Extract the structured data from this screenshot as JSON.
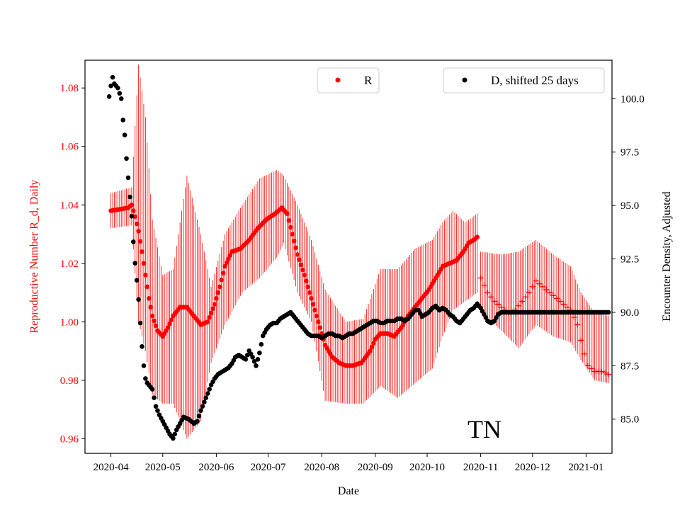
{
  "chart_data": {
    "type": "scatter",
    "region_label": "TN",
    "xlabel": "Date",
    "ylabel_left": "Reproductive Number R_d, Daily",
    "ylabel_right": "Encounter Density, Adjusted",
    "x_ticks": [
      "2020-04",
      "2020-05",
      "2020-06",
      "2020-07",
      "2020-08",
      "2020-09",
      "2020-10",
      "2020-11",
      "2020-12",
      "2021-01"
    ],
    "x_tick_days": [
      0,
      30,
      61,
      91,
      122,
      153,
      183,
      214,
      244,
      275
    ],
    "xlim_days": [
      -15,
      290
    ],
    "y_left": {
      "lim": [
        0.955,
        1.0895
      ],
      "ticks": [
        "0.96",
        "0.98",
        "1.00",
        "1.02",
        "1.04",
        "1.06",
        "1.08"
      ],
      "color": "#ff0000"
    },
    "y_right": {
      "lim": [
        83.4,
        101.8
      ],
      "ticks": [
        "85.0",
        "87.5",
        "90.0",
        "92.5",
        "95.0",
        "97.5",
        "100.0"
      ],
      "color": "#000000"
    },
    "legend": [
      {
        "label": "R",
        "color": "#ff0000",
        "position": "top-center"
      },
      {
        "label": "D, shifted 25 days",
        "color": "#000000",
        "position": "top-right"
      }
    ],
    "series": [
      {
        "name": "R",
        "axis": "left",
        "color": "#ff0000",
        "marker": "dot",
        "error_bars": true,
        "points": [
          [
            0,
            1.038
          ],
          [
            5,
            1.0385
          ],
          [
            10,
            1.039
          ],
          [
            12,
            1.04
          ],
          [
            14,
            1.036
          ],
          [
            16,
            1.031
          ],
          [
            18,
            1.024
          ],
          [
            20,
            1.016
          ],
          [
            22,
            1.008
          ],
          [
            24,
            1.002
          ],
          [
            27,
            0.997
          ],
          [
            30,
            0.995
          ],
          [
            33,
            0.998
          ],
          [
            36,
            1.002
          ],
          [
            40,
            1.005
          ],
          [
            44,
            1.005
          ],
          [
            48,
            1.002
          ],
          [
            52,
            0.999
          ],
          [
            56,
            1.0
          ],
          [
            60,
            1.006
          ],
          [
            63,
            1.012
          ],
          [
            66,
            1.019
          ],
          [
            70,
            1.024
          ],
          [
            75,
            1.025
          ],
          [
            80,
            1.028
          ],
          [
            85,
            1.032
          ],
          [
            90,
            1.035
          ],
          [
            95,
            1.037
          ],
          [
            99,
            1.039
          ],
          [
            102,
            1.037
          ],
          [
            105,
            1.03
          ],
          [
            108,
            1.023
          ],
          [
            112,
            1.016
          ],
          [
            116,
            1.008
          ],
          [
            120,
            1.0
          ],
          [
            124,
            0.992
          ],
          [
            128,
            0.988
          ],
          [
            132,
            0.986
          ],
          [
            136,
            0.985
          ],
          [
            140,
            0.985
          ],
          [
            145,
            0.986
          ],
          [
            150,
            0.99
          ],
          [
            153,
            0.994
          ],
          [
            156,
            0.996
          ],
          [
            160,
            0.996
          ],
          [
            164,
            0.995
          ],
          [
            168,
            0.998
          ],
          [
            172,
            1.002
          ],
          [
            176,
            1.005
          ],
          [
            180,
            1.008
          ],
          [
            184,
            1.011
          ],
          [
            188,
            1.015
          ],
          [
            192,
            1.019
          ],
          [
            196,
            1.02
          ],
          [
            200,
            1.021
          ],
          [
            204,
            1.024
          ],
          [
            207,
            1.027
          ],
          [
            210,
            1.028
          ],
          [
            212,
            1.029
          ]
        ],
        "err_upper": [
          [
            0,
            1.044
          ],
          [
            12,
            1.046
          ],
          [
            16,
            1.088
          ],
          [
            20,
            1.07
          ],
          [
            24,
            1.035
          ],
          [
            30,
            1.016
          ],
          [
            36,
            1.018
          ],
          [
            44,
            1.05
          ],
          [
            52,
            1.03
          ],
          [
            58,
            1.012
          ],
          [
            66,
            1.03
          ],
          [
            76,
            1.04
          ],
          [
            86,
            1.049
          ],
          [
            96,
            1.052
          ],
          [
            100,
            1.05
          ],
          [
            108,
            1.04
          ],
          [
            116,
            1.028
          ],
          [
            124,
            1.011
          ],
          [
            136,
            1.0
          ],
          [
            146,
            1.001
          ],
          [
            156,
            1.018
          ],
          [
            166,
            1.018
          ],
          [
            176,
            1.025
          ],
          [
            186,
            1.028
          ],
          [
            192,
            1.034
          ],
          [
            198,
            1.038
          ],
          [
            205,
            1.034
          ],
          [
            212,
            1.037
          ]
        ],
        "err_lower": [
          [
            0,
            1.032
          ],
          [
            12,
            1.033
          ],
          [
            16,
            1.0
          ],
          [
            20,
            0.99
          ],
          [
            24,
            0.975
          ],
          [
            30,
            0.972
          ],
          [
            36,
            0.972
          ],
          [
            44,
            0.96
          ],
          [
            52,
            0.966
          ],
          [
            58,
            0.986
          ],
          [
            66,
            0.999
          ],
          [
            76,
            1.01
          ],
          [
            86,
            1.015
          ],
          [
            96,
            1.022
          ],
          [
            100,
            1.027
          ],
          [
            108,
            1.01
          ],
          [
            116,
            1.0
          ],
          [
            124,
            0.973
          ],
          [
            136,
            0.972
          ],
          [
            146,
            0.972
          ],
          [
            156,
            0.978
          ],
          [
            166,
            0.974
          ],
          [
            176,
            0.979
          ],
          [
            186,
            0.984
          ],
          [
            192,
            0.995
          ],
          [
            198,
            1.004
          ],
          [
            205,
            1.007
          ],
          [
            212,
            1.01
          ]
        ]
      },
      {
        "name": "R (extended)",
        "axis": "left",
        "color": "#ff0000",
        "marker": "plus",
        "error_bars": true,
        "points": [
          [
            214,
            1.015
          ],
          [
            218,
            1.01
          ],
          [
            222,
            1.007
          ],
          [
            226,
            1.005
          ],
          [
            230,
            1.003
          ],
          [
            234,
            1.004
          ],
          [
            238,
            1.007
          ],
          [
            242,
            1.01
          ],
          [
            246,
            1.014
          ],
          [
            250,
            1.012
          ],
          [
            254,
            1.01
          ],
          [
            258,
            1.008
          ],
          [
            262,
            1.006
          ],
          [
            266,
            1.004
          ],
          [
            270,
            0.999
          ],
          [
            273,
            0.991
          ],
          [
            276,
            0.985
          ],
          [
            280,
            0.983
          ],
          [
            284,
            0.983
          ],
          [
            288,
            0.982
          ]
        ],
        "err_upper": [
          [
            214,
            1.024
          ],
          [
            226,
            1.023
          ],
          [
            236,
            1.024
          ],
          [
            246,
            1.028
          ],
          [
            256,
            1.023
          ],
          [
            266,
            1.019
          ],
          [
            272,
            1.01
          ],
          [
            280,
            1.003
          ],
          [
            288,
            1.002
          ]
        ],
        "err_lower": [
          [
            214,
            1.003
          ],
          [
            226,
            0.997
          ],
          [
            236,
            0.991
          ],
          [
            246,
            0.999
          ],
          [
            256,
            0.995
          ],
          [
            266,
            0.993
          ],
          [
            272,
            0.987
          ],
          [
            280,
            0.98
          ],
          [
            288,
            0.979
          ]
        ]
      },
      {
        "name": "D, shifted 25 days",
        "axis": "right",
        "color": "#000000",
        "marker": "dot",
        "points": [
          [
            -1,
            100.1
          ],
          [
            0,
            100.6
          ],
          [
            1,
            101.0
          ],
          [
            2,
            100.7
          ],
          [
            4,
            100.5
          ],
          [
            6,
            100.0
          ],
          [
            7,
            99.0
          ],
          [
            8,
            98.3
          ],
          [
            9,
            97.2
          ],
          [
            10,
            96.3
          ],
          [
            11,
            95.4
          ],
          [
            12,
            94.5
          ],
          [
            13,
            93.3
          ],
          [
            14,
            92.3
          ],
          [
            15,
            91.5
          ],
          [
            16,
            90.6
          ],
          [
            17,
            89.5
          ],
          [
            18,
            88.4
          ],
          [
            19,
            87.5
          ],
          [
            20,
            86.9
          ],
          [
            21,
            86.7
          ],
          [
            22,
            86.6
          ],
          [
            24,
            86.4
          ],
          [
            25,
            86.0
          ],
          [
            26,
            85.6
          ],
          [
            28,
            85.2
          ],
          [
            30,
            84.9
          ],
          [
            32,
            84.6
          ],
          [
            34,
            84.3
          ],
          [
            36,
            84.1
          ],
          [
            38,
            84.5
          ],
          [
            40,
            84.8
          ],
          [
            42,
            85.1
          ],
          [
            45,
            85.0
          ],
          [
            48,
            84.8
          ],
          [
            50,
            84.9
          ],
          [
            52,
            85.4
          ],
          [
            54,
            85.8
          ],
          [
            56,
            86.2
          ],
          [
            58,
            86.6
          ],
          [
            60,
            86.9
          ],
          [
            62,
            87.1
          ],
          [
            64,
            87.2
          ],
          [
            66,
            87.3
          ],
          [
            68,
            87.4
          ],
          [
            70,
            87.6
          ],
          [
            72,
            87.9
          ],
          [
            74,
            88.0
          ],
          [
            76,
            87.9
          ],
          [
            78,
            87.8
          ],
          [
            80,
            88.2
          ],
          [
            82,
            87.9
          ],
          [
            84,
            87.5
          ],
          [
            86,
            88.1
          ],
          [
            88,
            88.9
          ],
          [
            90,
            89.2
          ],
          [
            92,
            89.4
          ],
          [
            94,
            89.5
          ],
          [
            96,
            89.5
          ],
          [
            98,
            89.7
          ],
          [
            100,
            89.8
          ],
          [
            102,
            89.9
          ],
          [
            104,
            90.0
          ],
          [
            106,
            89.8
          ],
          [
            108,
            89.6
          ],
          [
            110,
            89.4
          ],
          [
            112,
            89.2
          ],
          [
            114,
            89.0
          ],
          [
            116,
            88.9
          ],
          [
            118,
            88.9
          ],
          [
            120,
            88.9
          ],
          [
            122,
            88.8
          ],
          [
            124,
            88.9
          ],
          [
            126,
            89.0
          ],
          [
            128,
            89.0
          ],
          [
            130,
            88.9
          ],
          [
            132,
            88.9
          ],
          [
            134,
            88.8
          ],
          [
            136,
            88.9
          ],
          [
            138,
            89.0
          ],
          [
            140,
            89.0
          ],
          [
            142,
            89.1
          ],
          [
            144,
            89.2
          ],
          [
            146,
            89.3
          ],
          [
            148,
            89.4
          ],
          [
            150,
            89.5
          ],
          [
            152,
            89.6
          ],
          [
            154,
            89.6
          ],
          [
            156,
            89.5
          ],
          [
            158,
            89.5
          ],
          [
            160,
            89.6
          ],
          [
            162,
            89.6
          ],
          [
            164,
            89.6
          ],
          [
            166,
            89.7
          ],
          [
            168,
            89.7
          ],
          [
            170,
            89.6
          ],
          [
            172,
            89.7
          ],
          [
            174,
            89.9
          ],
          [
            176,
            90.1
          ],
          [
            178,
            90.1
          ],
          [
            180,
            89.8
          ],
          [
            182,
            89.9
          ],
          [
            184,
            90.0
          ],
          [
            186,
            90.2
          ],
          [
            188,
            90.3
          ],
          [
            190,
            90.1
          ],
          [
            192,
            90.2
          ],
          [
            194,
            90.1
          ],
          [
            196,
            89.9
          ],
          [
            198,
            89.8
          ],
          [
            200,
            89.6
          ],
          [
            202,
            89.5
          ],
          [
            204,
            89.7
          ],
          [
            206,
            89.9
          ],
          [
            208,
            90.1
          ],
          [
            210,
            90.2
          ],
          [
            212,
            90.4
          ],
          [
            214,
            90.2
          ],
          [
            216,
            89.9
          ],
          [
            218,
            89.6
          ],
          [
            220,
            89.5
          ],
          [
            222,
            89.6
          ],
          [
            224,
            89.9
          ],
          [
            226,
            90.0
          ],
          [
            230,
            90.0
          ],
          [
            240,
            90.0
          ],
          [
            250,
            90.0
          ],
          [
            260,
            90.0
          ],
          [
            270,
            90.0
          ],
          [
            280,
            90.0
          ],
          [
            288,
            90.0
          ]
        ]
      }
    ]
  }
}
